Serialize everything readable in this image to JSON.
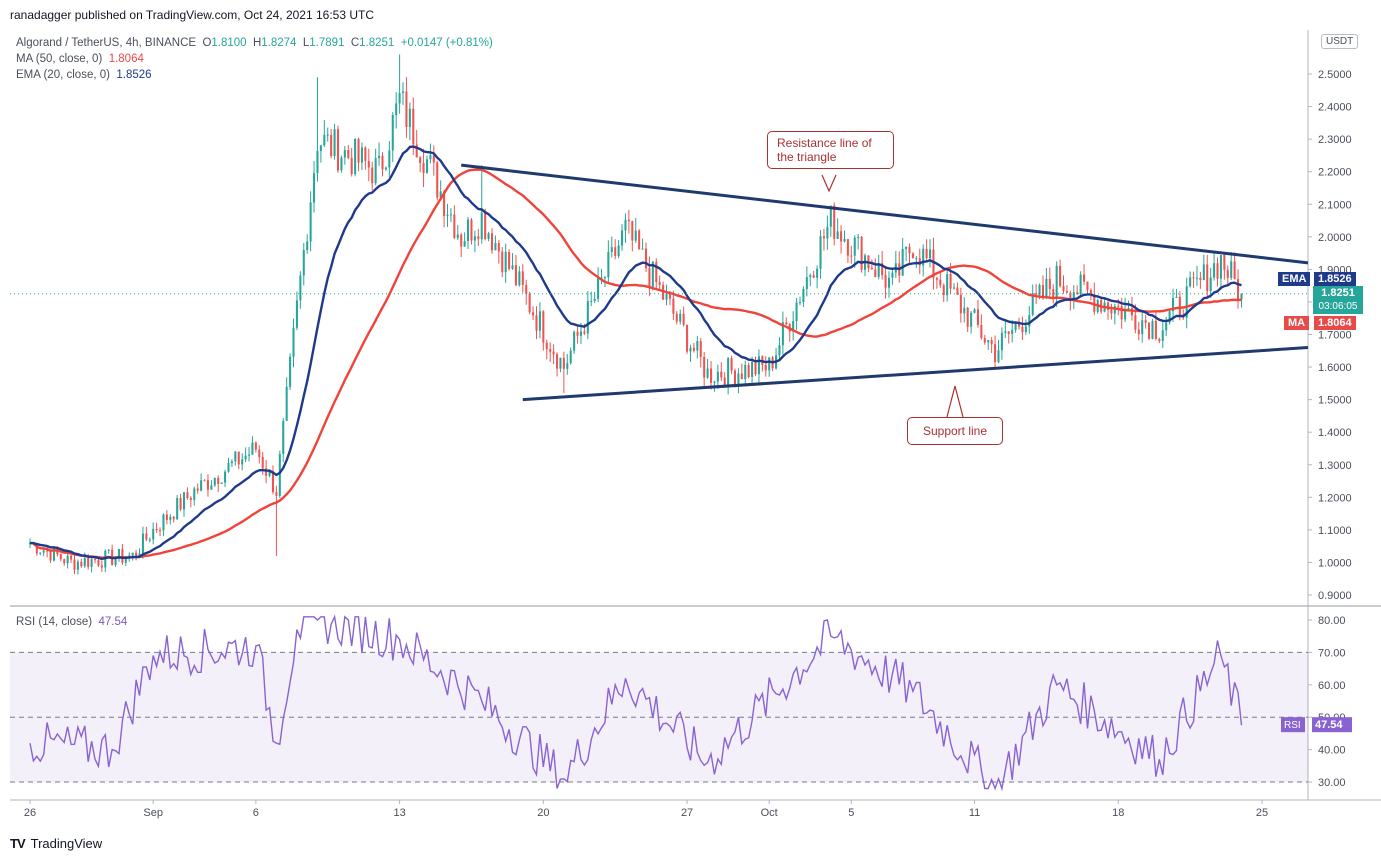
{
  "publisher": "ranadagger published on TradingView.com, Oct 24, 2021 16:53 UTC",
  "legend": {
    "symbol": "Algorand / TetherUS, 4h, BINANCE",
    "o_label": "O",
    "o": "1.8100",
    "h_label": "H",
    "h": "1.8274",
    "l_label": "L",
    "l": "1.7891",
    "c_label": "C",
    "c": "1.8251",
    "change": "+0.0147 (+0.81%)",
    "ma_label": "MA (50, close, 0)",
    "ma_value": "1.8064",
    "ema_label": "EMA (20, close, 0)",
    "ema_value": "1.8526"
  },
  "rsi_legend": {
    "label": "RSI (14, close)",
    "value": "47.54"
  },
  "currency": "USDT",
  "price_tags": {
    "ema_label": "EMA",
    "ema_value": "1.8526",
    "price": "1.8251",
    "countdown": "03:06:05",
    "ma_label": "MA",
    "ma_value": "1.8064"
  },
  "annotations": {
    "resistance": [
      "Resistance line of",
      "the triangle"
    ],
    "support": "Support line"
  },
  "footer": {
    "brand": "TradingView",
    "logo": "TV"
  },
  "colors": {
    "up": "#26a69a",
    "down": "#ef5350",
    "ema": "#1f3a8a",
    "ma": "#f0443a",
    "trendline": "#1f3a6e",
    "rsi": "#8a63d2",
    "annotation": "#a83232"
  },
  "chart_data": [
    {
      "type": "candlestick",
      "title": "Algorand / TetherUS, 4h, BINANCE",
      "ylim": [
        0.88,
        2.57
      ],
      "y_ticks": [
        "0.9000",
        "1.0000",
        "1.1000",
        "1.2000",
        "1.3000",
        "1.4000",
        "1.5000",
        "1.6000",
        "1.7000",
        "1.8000",
        "1.9000",
        "2.0000",
        "2.1000",
        "2.2000",
        "2.3000",
        "2.4000",
        "2.5000"
      ],
      "x_ticks": [
        "26",
        "Sep",
        "6",
        "13",
        "20",
        "27",
        "Oct",
        "5",
        "11",
        "18",
        "25"
      ],
      "key_prices": [
        {
          "date": "Aug 26",
          "close": 1.06
        },
        {
          "date": "Aug 28",
          "close": 1.0
        },
        {
          "date": "Aug 31",
          "close": 1.02
        },
        {
          "date": "Sep 1",
          "close": 1.1
        },
        {
          "date": "Sep 3",
          "close": 1.22
        },
        {
          "date": "Sep 6",
          "close": 1.35
        },
        {
          "date": "Sep 7",
          "low": 1.02,
          "close": 1.22
        },
        {
          "date": "Sep 8",
          "close": 1.78
        },
        {
          "date": "Sep 9",
          "high": 2.49,
          "close": 2.3
        },
        {
          "date": "Sep 12",
          "close": 2.2
        },
        {
          "date": "Sep 13",
          "high": 2.56,
          "close": 2.42
        },
        {
          "date": "Sep 16",
          "close": 2.0
        },
        {
          "date": "Sep 17",
          "high": 2.22,
          "close": 2.06
        },
        {
          "date": "Sep 21",
          "low": 1.52,
          "close": 1.6
        },
        {
          "date": "Sep 24",
          "close": 2.02
        },
        {
          "date": "Sep 28",
          "close": 1.58
        },
        {
          "date": "Oct 1",
          "close": 1.6
        },
        {
          "date": "Oct 4",
          "high": 2.09,
          "close": 2.05
        },
        {
          "date": "Oct 7",
          "close": 1.85
        },
        {
          "date": "Oct 8",
          "close": 1.98
        },
        {
          "date": "Oct 12",
          "low": 1.6,
          "close": 1.65
        },
        {
          "date": "Oct 15",
          "close": 1.87
        },
        {
          "date": "Oct 20",
          "close": 1.72
        },
        {
          "date": "Oct 23",
          "high": 1.94,
          "close": 1.93
        },
        {
          "date": "Oct 24",
          "close": 1.8251
        }
      ],
      "ema_20_last": 1.8526,
      "ma_50_last": 1.8064,
      "trendlines": {
        "resistance": {
          "from": {
            "date": "Sep 16",
            "price": 2.22
          },
          "to": {
            "date": "Oct 25",
            "price": 1.92
          }
        },
        "support": {
          "from": {
            "date": "Sep 19",
            "price": 1.5
          },
          "to": {
            "date": "Oct 25",
            "price": 1.66
          }
        }
      }
    },
    {
      "type": "line",
      "title": "RSI (14, close)",
      "ylim": [
        27,
        82
      ],
      "y_ticks": [
        "30.00",
        "40.00",
        "50.00",
        "60.00",
        "70.00",
        "80.00"
      ],
      "overbought": 70,
      "oversold": 30,
      "mid": 50,
      "key_values": [
        {
          "date": "Aug 26",
          "value": 42
        },
        {
          "date": "Aug 30",
          "value": 40
        },
        {
          "date": "Sep 1",
          "value": 69
        },
        {
          "date": "Sep 6",
          "value": 72
        },
        {
          "date": "Sep 7",
          "value": 42
        },
        {
          "date": "Sep 8",
          "value": 77
        },
        {
          "date": "Sep 9",
          "value": 80
        },
        {
          "date": "Sep 13",
          "value": 74
        },
        {
          "date": "Sep 17",
          "value": 55
        },
        {
          "date": "Sep 21",
          "value": 31
        },
        {
          "date": "Sep 24",
          "value": 62
        },
        {
          "date": "Sep 28",
          "value": 36
        },
        {
          "date": "Oct 4",
          "value": 75
        },
        {
          "date": "Oct 8",
          "value": 58
        },
        {
          "date": "Oct 12",
          "value": 28
        },
        {
          "date": "Oct 15",
          "value": 60
        },
        {
          "date": "Oct 20",
          "value": 37
        },
        {
          "date": "Oct 23",
          "value": 69
        },
        {
          "date": "Oct 24",
          "value": 47.54
        }
      ]
    }
  ]
}
